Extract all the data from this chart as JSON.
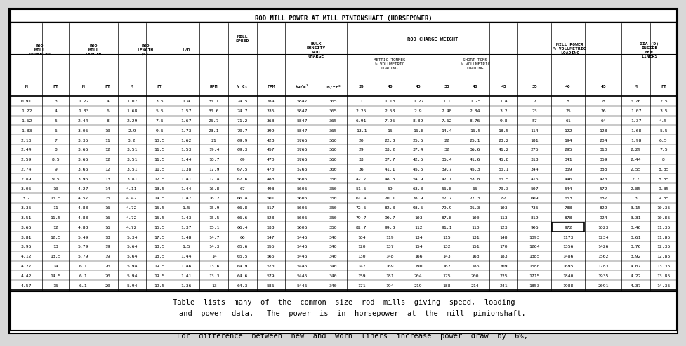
{
  "title": "ROD MILL POWER AT MILL PINIONSHAFT (HORSEPOWER)",
  "footer_lines": [
    "Table  lists  many  of  the  common  size  rod  mills  giving  speed,  loading",
    "    and  power  data.   The  power  is  in  horsepower  at  the  mill  pinionshaft.",
    "",
    "    For  ditterence  between  new  and  worn  liners  increase  power  draw  by  6%,"
  ],
  "rows": [
    [
      0.91,
      3.0,
      1.22,
      4,
      1.07,
      3.5,
      1.4,
      36.1,
      74.5,
      284,
      5847,
      365,
      1.0,
      1.13,
      1.27,
      1.1,
      1.25,
      1.4,
      7,
      8,
      8,
      0.76,
      2.5
    ],
    [
      1.22,
      4.0,
      1.83,
      6,
      1.68,
      5.5,
      1.57,
      30.6,
      74.7,
      336,
      5847,
      365,
      2.25,
      2.58,
      2.9,
      2.48,
      2.84,
      3.2,
      23,
      25,
      26,
      1.07,
      3.5
    ],
    [
      1.52,
      5.0,
      2.44,
      8,
      2.29,
      7.5,
      1.67,
      25.7,
      71.2,
      363,
      5847,
      365,
      6.91,
      7.95,
      8.89,
      7.62,
      8.76,
      9.8,
      57,
      61,
      64,
      1.37,
      4.5
    ],
    [
      1.83,
      6.0,
      3.05,
      10,
      2.9,
      9.5,
      1.73,
      23.1,
      70.7,
      399,
      5847,
      365,
      13.1,
      15.0,
      16.8,
      14.4,
      16.5,
      18.5,
      114,
      122,
      128,
      1.68,
      5.5
    ],
    [
      2.13,
      7.0,
      3.35,
      11,
      3.2,
      10.5,
      1.62,
      21.0,
      69.9,
      428,
      5766,
      360,
      20.0,
      22.8,
      25.6,
      22.0,
      25.1,
      28.2,
      181,
      194,
      204,
      1.98,
      6.5
    ],
    [
      2.44,
      8.0,
      3.66,
      12,
      3.51,
      11.5,
      1.53,
      19.4,
      69.3,
      457,
      5766,
      360,
      29.0,
      33.2,
      37.4,
      32.0,
      36.6,
      41.2,
      275,
      295,
      310,
      2.29,
      7.5
    ],
    [
      2.59,
      8.5,
      3.66,
      12,
      3.51,
      11.5,
      1.44,
      18.7,
      69.0,
      470,
      5766,
      360,
      33.0,
      37.7,
      42.5,
      36.4,
      41.6,
      46.8,
      318,
      341,
      359,
      2.44,
      8.0
    ],
    [
      2.74,
      9.0,
      3.66,
      12,
      3.51,
      11.5,
      1.38,
      17.9,
      67.5,
      470,
      5766,
      360,
      36.0,
      41.1,
      45.5,
      39.7,
      45.3,
      50.1,
      344,
      369,
      388,
      2.55,
      8.35
    ],
    [
      2.89,
      9.5,
      3.96,
      13,
      3.81,
      12.5,
      1.41,
      17.4,
      67.6,
      483,
      5606,
      350,
      42.7,
      48.8,
      54.9,
      47.1,
      53.8,
      60.5,
      416,
      446,
      470,
      2.7,
      8.85
    ],
    [
      3.05,
      10.0,
      4.27,
      14,
      4.11,
      13.5,
      1.44,
      16.8,
      67.0,
      493,
      5606,
      350,
      51.5,
      59.0,
      63.8,
      56.8,
      65.0,
      70.3,
      507,
      544,
      572,
      2.85,
      9.35
    ],
    [
      3.2,
      10.5,
      4.57,
      15,
      4.42,
      14.5,
      1.47,
      16.2,
      66.4,
      501,
      5606,
      350,
      61.4,
      70.1,
      78.9,
      67.7,
      77.3,
      87.0,
      609,
      653,
      687,
      3.0,
      9.85
    ],
    [
      3.35,
      11.0,
      4.88,
      16,
      4.72,
      15.5,
      1.5,
      15.9,
      66.8,
      517,
      5606,
      350,
      72.5,
      82.8,
      93.5,
      79.9,
      91.3,
      103,
      735,
      788,
      829,
      3.15,
      10.35
    ],
    [
      3.51,
      11.5,
      4.88,
      16,
      4.72,
      15.5,
      1.43,
      15.5,
      66.6,
      528,
      5606,
      350,
      79.7,
      90.7,
      103,
      87.8,
      100,
      113,
      819,
      878,
      924,
      3.31,
      10.85
    ],
    [
      3.66,
      12.0,
      4.88,
      16,
      4.72,
      15.5,
      1.37,
      15.1,
      66.4,
      538,
      5606,
      350,
      82.7,
      99.8,
      112,
      91.1,
      110,
      123,
      906,
      972,
      1023,
      3.46,
      11.35
    ],
    [
      3.81,
      12.5,
      5.49,
      18,
      5.34,
      17.5,
      1.48,
      14.7,
      66.0,
      547,
      5446,
      340,
      104,
      119,
      134,
      115,
      131,
      148,
      1093,
      1173,
      1234,
      3.61,
      11.85
    ],
    [
      3.96,
      13.0,
      5.79,
      19,
      5.64,
      18.5,
      1.5,
      14.3,
      65.6,
      555,
      5446,
      340,
      120,
      137,
      154,
      132,
      151,
      170,
      1264,
      1356,
      1426,
      3.76,
      12.35
    ],
    [
      4.12,
      13.5,
      5.79,
      19,
      5.64,
      18.5,
      1.44,
      14.0,
      65.5,
      565,
      5446,
      340,
      130,
      148,
      166,
      143,
      163,
      183,
      1385,
      1486,
      1562,
      3.92,
      12.85
    ],
    [
      4.27,
      14.0,
      6.1,
      20,
      5.94,
      19.5,
      1.46,
      13.6,
      64.9,
      570,
      5446,
      340,
      147,
      169,
      190,
      162,
      186,
      209,
      1580,
      1695,
      1783,
      4.07,
      13.35
    ],
    [
      4.42,
      14.5,
      6.1,
      20,
      5.94,
      19.5,
      1.41,
      13.3,
      64.6,
      579,
      5446,
      340,
      159,
      181,
      204,
      175,
      200,
      225,
      1715,
      1840,
      1935,
      4.22,
      13.85
    ],
    [
      4.57,
      15.0,
      6.1,
      20,
      5.94,
      19.5,
      1.36,
      13.0,
      64.3,
      586,
      5446,
      340,
      171,
      194,
      219,
      188,
      214,
      241,
      1853,
      1988,
      2091,
      4.37,
      14.35
    ]
  ],
  "highlighted_cell_row": 13,
  "highlighted_cell_col": 19,
  "col_widths_raw": [
    3.8,
    3.2,
    3.4,
    2.4,
    3.4,
    3.2,
    3.2,
    3.4,
    3.4,
    3.4,
    4.0,
    3.4,
    3.4,
    3.4,
    3.4,
    3.4,
    3.4,
    3.4,
    4.0,
    4.0,
    4.4,
    3.4,
    3.2
  ],
  "bg_color": "#d8d8d8",
  "table_bg": "#ffffff",
  "text_color": "#000000"
}
